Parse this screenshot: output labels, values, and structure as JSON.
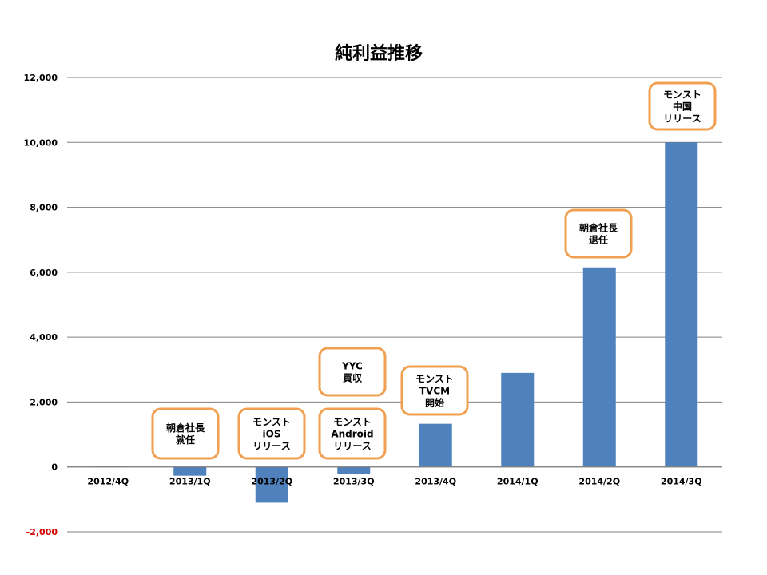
{
  "chart_data": {
    "type": "bar",
    "title": "純利益推移",
    "xlabel": "",
    "ylabel": "",
    "categories": [
      "2012/4Q",
      "2013/1Q",
      "2013/2Q",
      "2013/3Q",
      "2013/4Q",
      "2014/1Q",
      "2014/2Q",
      "2014/3Q"
    ],
    "values": [
      30,
      -270,
      -1100,
      -220,
      1330,
      2900,
      6150,
      10000
    ],
    "ylim": [
      -2000,
      12000
    ],
    "yticks": [
      -2000,
      0,
      2000,
      4000,
      6000,
      8000,
      10000,
      12000
    ],
    "ytick_labels": [
      "-2,000",
      "0",
      "2,000",
      "4,000",
      "6,000",
      "8,000",
      "10,000",
      "12,000"
    ],
    "grid": true,
    "legend": "none",
    "annotations": [
      {
        "category": "2013/1Q",
        "lines": [
          "朝倉社長",
          "就任"
        ]
      },
      {
        "category": "2013/2Q",
        "lines": [
          "モンスト",
          "iOS",
          "リリース"
        ]
      },
      {
        "category": "2013/3Q",
        "lines": [
          "YYC",
          "買収"
        ]
      },
      {
        "category": "2013/3Q",
        "lines": [
          "モンスト",
          "Android",
          "リリース"
        ]
      },
      {
        "category": "2013/4Q",
        "lines": [
          "モンスト",
          "TVCM",
          "開始"
        ]
      },
      {
        "category": "2014/2Q",
        "lines": [
          "朝倉社長",
          "退任"
        ]
      },
      {
        "category": "2014/3Q",
        "lines": [
          "モンスト",
          "中国",
          "リリース"
        ]
      }
    ]
  },
  "colors": {
    "bar": "#4f81bd",
    "grid": "#808080",
    "annotation_border": "#f0a050",
    "negative_tick": "#d00000"
  }
}
